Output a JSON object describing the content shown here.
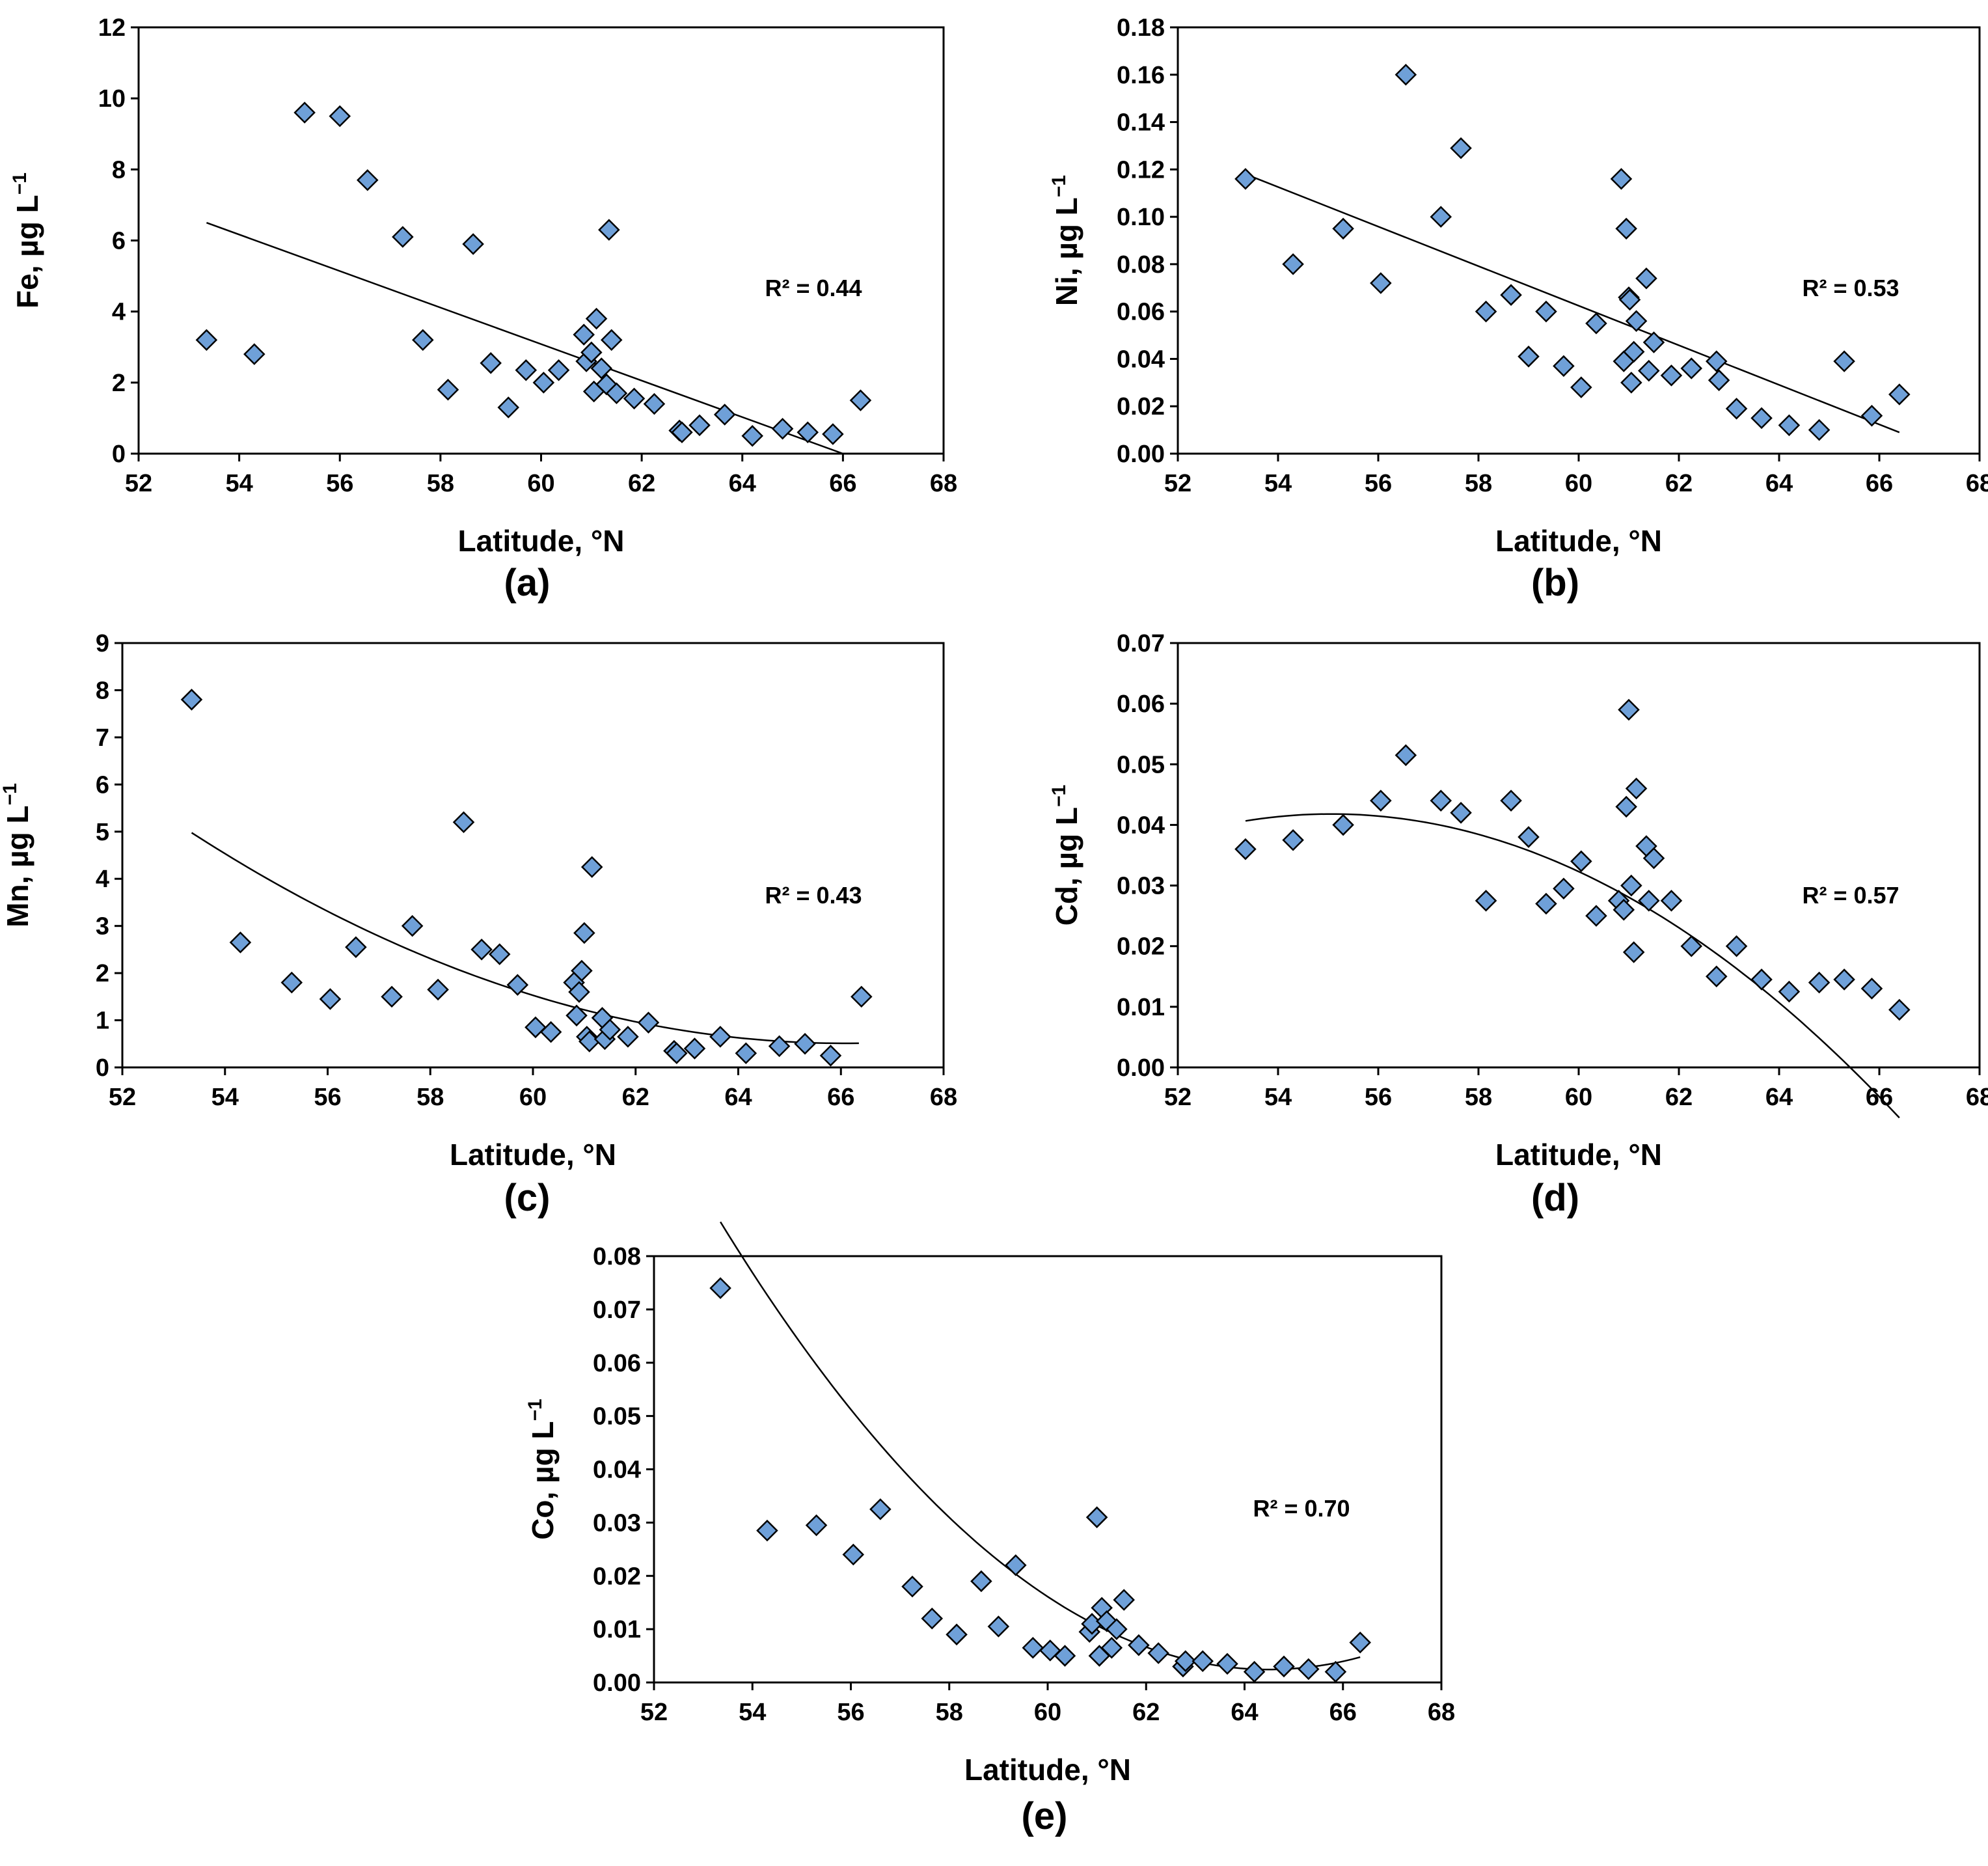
{
  "chart_data": [
    {
      "id": "a",
      "type": "scatter",
      "panel_label": "(a)",
      "xlabel": "Latitude, °N",
      "ylabel": "Fe, µg L",
      "ylabel_sup": "−1",
      "xlim": [
        52,
        68
      ],
      "ylim": [
        0,
        12
      ],
      "xticks": [
        "52",
        "54",
        "56",
        "58",
        "60",
        "62",
        "64",
        "66",
        "68"
      ],
      "yticks": [
        "0",
        "2",
        "4",
        "6",
        "8",
        "10",
        "12"
      ],
      "r2_text": "R² = 0.44",
      "trend": "linear",
      "points": [
        [
          53.35,
          3.2
        ],
        [
          54.3,
          2.8
        ],
        [
          55.3,
          9.6
        ],
        [
          56.0,
          9.5
        ],
        [
          56.55,
          7.7
        ],
        [
          57.25,
          6.1
        ],
        [
          57.65,
          3.2
        ],
        [
          58.15,
          1.8
        ],
        [
          58.65,
          5.9
        ],
        [
          59.0,
          2.55
        ],
        [
          59.35,
          1.3
        ],
        [
          59.7,
          2.35
        ],
        [
          60.05,
          2.0
        ],
        [
          60.35,
          2.35
        ],
        [
          60.85,
          3.35
        ],
        [
          60.9,
          2.6
        ],
        [
          61.0,
          2.85
        ],
        [
          61.05,
          1.75
        ],
        [
          61.1,
          3.8
        ],
        [
          61.2,
          2.4
        ],
        [
          61.3,
          1.95
        ],
        [
          61.35,
          6.3
        ],
        [
          61.4,
          3.2
        ],
        [
          61.5,
          1.7
        ],
        [
          61.85,
          1.55
        ],
        [
          62.25,
          1.4
        ],
        [
          62.75,
          0.65
        ],
        [
          62.8,
          0.6
        ],
        [
          63.15,
          0.8
        ],
        [
          63.65,
          1.1
        ],
        [
          64.2,
          0.5
        ],
        [
          64.8,
          0.7
        ],
        [
          65.3,
          0.6
        ],
        [
          65.8,
          0.55
        ],
        [
          66.35,
          1.5
        ]
      ],
      "fit": [
        [
          53.35,
          6.5
        ],
        [
          66.0,
          0.0
        ]
      ]
    },
    {
      "id": "b",
      "type": "scatter",
      "panel_label": "(b)",
      "xlabel": "Latitude, °N",
      "ylabel": "Ni, µg L",
      "ylabel_sup": "−1",
      "xlim": [
        52,
        68
      ],
      "ylim": [
        0,
        0.18
      ],
      "xticks": [
        "52",
        "54",
        "56",
        "58",
        "60",
        "62",
        "64",
        "66",
        "68"
      ],
      "yticks": [
        "0.00",
        "0.02",
        "0.04",
        "0.06",
        "0.08",
        "0.10",
        "0.12",
        "0.14",
        "0.16",
        "0.18"
      ],
      "r2_text": "R² = 0.53",
      "trend": "linear",
      "points": [
        [
          53.35,
          0.116
        ],
        [
          54.3,
          0.08
        ],
        [
          55.3,
          0.095
        ],
        [
          56.05,
          0.072
        ],
        [
          56.55,
          0.16
        ],
        [
          57.25,
          0.1
        ],
        [
          57.65,
          0.129
        ],
        [
          58.15,
          0.06
        ],
        [
          58.65,
          0.067
        ],
        [
          59.0,
          0.041
        ],
        [
          59.35,
          0.06
        ],
        [
          59.7,
          0.037
        ],
        [
          60.05,
          0.028
        ],
        [
          60.35,
          0.055
        ],
        [
          60.85,
          0.116
        ],
        [
          60.9,
          0.039
        ],
        [
          60.95,
          0.095
        ],
        [
          61.0,
          0.066
        ],
        [
          61.02,
          0.065
        ],
        [
          61.05,
          0.03
        ],
        [
          61.1,
          0.043
        ],
        [
          61.15,
          0.056
        ],
        [
          61.35,
          0.074
        ],
        [
          61.4,
          0.035
        ],
        [
          61.5,
          0.047
        ],
        [
          61.85,
          0.033
        ],
        [
          62.25,
          0.036
        ],
        [
          62.75,
          0.039
        ],
        [
          62.8,
          0.031
        ],
        [
          63.15,
          0.019
        ],
        [
          63.65,
          0.015
        ],
        [
          64.2,
          0.012
        ],
        [
          64.8,
          0.01
        ],
        [
          65.3,
          0.039
        ],
        [
          65.85,
          0.016
        ],
        [
          66.4,
          0.025
        ]
      ],
      "fit": [
        [
          53.35,
          0.118
        ],
        [
          66.4,
          0.009
        ]
      ]
    },
    {
      "id": "c",
      "type": "scatter",
      "panel_label": "(c)",
      "xlabel": "Latitude, °N",
      "ylabel": "Mn, µg L",
      "ylabel_sup": "−1",
      "xlim": [
        52,
        68
      ],
      "ylim": [
        0,
        9
      ],
      "xticks": [
        "52",
        "54",
        "56",
        "58",
        "60",
        "62",
        "64",
        "66",
        "68"
      ],
      "yticks": [
        "0",
        "1",
        "2",
        "3",
        "4",
        "5",
        "6",
        "7",
        "8",
        "9"
      ],
      "r2_text": "R² = 0.43",
      "trend": "polynomial",
      "points": [
        [
          53.35,
          7.8
        ],
        [
          54.3,
          2.65
        ],
        [
          55.3,
          1.8
        ],
        [
          56.05,
          1.45
        ],
        [
          56.55,
          2.55
        ],
        [
          57.25,
          1.5
        ],
        [
          57.65,
          3.0
        ],
        [
          58.15,
          1.65
        ],
        [
          58.65,
          5.2
        ],
        [
          59.0,
          2.5
        ],
        [
          59.35,
          2.4
        ],
        [
          59.7,
          1.75
        ],
        [
          60.05,
          0.85
        ],
        [
          60.35,
          0.75
        ],
        [
          60.8,
          1.8
        ],
        [
          60.85,
          1.1
        ],
        [
          60.9,
          1.6
        ],
        [
          60.95,
          2.05
        ],
        [
          61.0,
          2.85
        ],
        [
          61.05,
          0.65
        ],
        [
          61.1,
          0.55
        ],
        [
          61.15,
          4.25
        ],
        [
          61.35,
          1.05
        ],
        [
          61.4,
          0.6
        ],
        [
          61.5,
          0.8
        ],
        [
          61.85,
          0.65
        ],
        [
          62.25,
          0.95
        ],
        [
          62.75,
          0.35
        ],
        [
          62.8,
          0.3
        ],
        [
          63.15,
          0.4
        ],
        [
          63.65,
          0.65
        ],
        [
          64.15,
          0.3
        ],
        [
          64.8,
          0.45
        ],
        [
          65.3,
          0.5
        ],
        [
          65.8,
          0.25
        ],
        [
          66.4,
          1.5
        ]
      ],
      "fit_coeffs": [
        0.0276,
        -3.6472,
        121.0
      ],
      "fit_range": [
        53.35,
        66.35
      ]
    },
    {
      "id": "d",
      "type": "scatter",
      "panel_label": "(d)",
      "xlabel": "Latitude, °N",
      "ylabel": "Cd, µg L",
      "ylabel_sup": "−1",
      "xlim": [
        52,
        68
      ],
      "ylim": [
        0,
        0.07
      ],
      "xticks": [
        "52",
        "54",
        "56",
        "58",
        "60",
        "62",
        "64",
        "66",
        "68"
      ],
      "yticks": [
        "0.00",
        "0.01",
        "0.02",
        "0.03",
        "0.04",
        "0.05",
        "0.06",
        "0.07"
      ],
      "r2_text": "R² = 0.57",
      "trend": "polynomial",
      "points": [
        [
          53.35,
          0.036
        ],
        [
          54.3,
          0.0375
        ],
        [
          55.3,
          0.04
        ],
        [
          56.05,
          0.044
        ],
        [
          56.55,
          0.0515
        ],
        [
          57.25,
          0.044
        ],
        [
          57.65,
          0.042
        ],
        [
          58.15,
          0.0275
        ],
        [
          58.65,
          0.044
        ],
        [
          59.0,
          0.038
        ],
        [
          59.35,
          0.027
        ],
        [
          59.7,
          0.0295
        ],
        [
          60.05,
          0.034
        ],
        [
          60.35,
          0.025
        ],
        [
          60.8,
          0.0275
        ],
        [
          60.9,
          0.026
        ],
        [
          60.95,
          0.043
        ],
        [
          61.0,
          0.059
        ],
        [
          61.05,
          0.03
        ],
        [
          61.1,
          0.019
        ],
        [
          61.15,
          0.046
        ],
        [
          61.35,
          0.0365
        ],
        [
          61.4,
          0.0275
        ],
        [
          61.5,
          0.0345
        ],
        [
          61.85,
          0.0275
        ],
        [
          62.25,
          0.02
        ],
        [
          62.75,
          0.015
        ],
        [
          63.15,
          0.02
        ],
        [
          63.65,
          0.0145
        ],
        [
          64.2,
          0.0125
        ],
        [
          64.8,
          0.014
        ],
        [
          65.3,
          0.0145
        ],
        [
          65.85,
          0.013
        ],
        [
          66.4,
          0.0095
        ]
      ],
      "fit_coeffs": [
        -0.00039,
        0.04295,
        -1.1407
      ],
      "fit_range": [
        53.35,
        66.4
      ]
    },
    {
      "id": "e",
      "type": "scatter",
      "panel_label": "(e)",
      "xlabel": "Latitude, °N",
      "ylabel": "Co, µg L",
      "ylabel_sup": "−1",
      "xlim": [
        52,
        68
      ],
      "ylim": [
        0,
        0.08
      ],
      "xticks": [
        "52",
        "54",
        "56",
        "58",
        "60",
        "62",
        "64",
        "66",
        "68"
      ],
      "yticks": [
        "0.00",
        "0.01",
        "0.02",
        "0.03",
        "0.04",
        "0.05",
        "0.06",
        "0.07",
        "0.08"
      ],
      "r2_text": "R² = 0.70",
      "trend": "polynomial",
      "points": [
        [
          53.35,
          0.074
        ],
        [
          54.3,
          0.0285
        ],
        [
          55.3,
          0.0295
        ],
        [
          56.05,
          0.024
        ],
        [
          56.6,
          0.0325
        ],
        [
          57.25,
          0.018
        ],
        [
          57.65,
          0.012
        ],
        [
          58.15,
          0.009
        ],
        [
          58.65,
          0.019
        ],
        [
          59.0,
          0.0105
        ],
        [
          59.35,
          0.022
        ],
        [
          59.7,
          0.0065
        ],
        [
          60.05,
          0.006
        ],
        [
          60.35,
          0.005
        ],
        [
          60.85,
          0.0095
        ],
        [
          60.9,
          0.011
        ],
        [
          61.0,
          0.031
        ],
        [
          61.05,
          0.005
        ],
        [
          61.1,
          0.014
        ],
        [
          61.2,
          0.0115
        ],
        [
          61.3,
          0.0065
        ],
        [
          61.4,
          0.01
        ],
        [
          61.55,
          0.0155
        ],
        [
          61.85,
          0.007
        ],
        [
          62.25,
          0.0055
        ],
        [
          62.75,
          0.003
        ],
        [
          62.8,
          0.004
        ],
        [
          63.15,
          0.004
        ],
        [
          63.65,
          0.0035
        ],
        [
          64.2,
          0.002
        ],
        [
          64.8,
          0.003
        ],
        [
          65.3,
          0.0025
        ],
        [
          65.85,
          0.002
        ],
        [
          66.35,
          0.0075
        ]
      ],
      "fit_coeffs": [
        0.000676,
        -0.0872,
        2.8145
      ],
      "fit_range": [
        53.35,
        66.35
      ]
    }
  ]
}
